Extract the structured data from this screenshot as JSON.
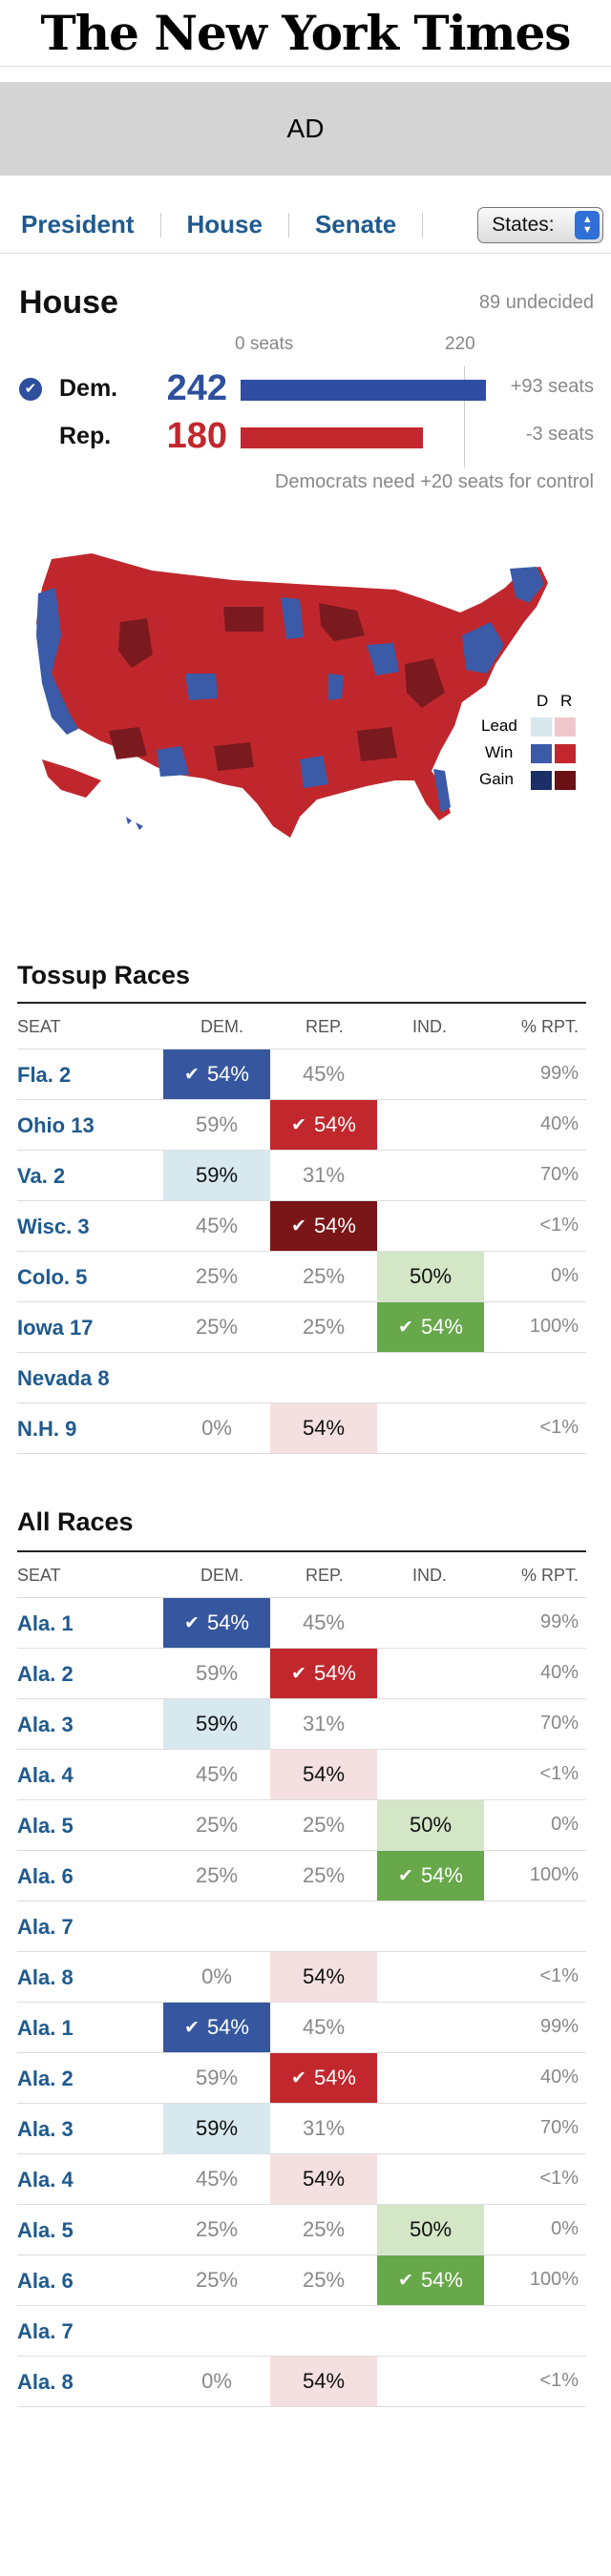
{
  "header": {
    "logo": "The New York Times"
  },
  "ad": {
    "label": "AD"
  },
  "nav": {
    "items": [
      "President",
      "House",
      "Senate"
    ],
    "states_select": "States:"
  },
  "summary": {
    "title": "House",
    "undecided": "89 undecided",
    "scale_start": "0 seats",
    "scale_mark": "220",
    "dem": {
      "label": "Dem.",
      "seats": "242",
      "change": "+93 seats",
      "winner": true
    },
    "rep": {
      "label": "Rep.",
      "seats": "180",
      "change": "-3 seats"
    },
    "control_note": "Democrats need +20 seats for control"
  },
  "map_legend": {
    "columns": [
      "D",
      "R"
    ],
    "rows": [
      "Lead",
      "Win",
      "Gain"
    ],
    "colors": {
      "dem_lead": "#d7e8ef",
      "rep_lead": "#f0c8cb",
      "dem_win": "#3a5ba8",
      "rep_win": "#c1272d",
      "dem_gain": "#1a2f68",
      "rep_gain": "#6b1014"
    }
  },
  "columns": {
    "seat": "SEAT",
    "dem": "DEM.",
    "rep": "REP.",
    "ind": "IND.",
    "pct": "% RPT."
  },
  "tossup": {
    "title": "Tossup Races",
    "rows": [
      {
        "seat": "Fla. 2",
        "dem": "54%",
        "rep": "45%",
        "ind": "",
        "pct": "99%",
        "style": {
          "dem": "fill-win-dem"
        },
        "check": "dem"
      },
      {
        "seat": "Ohio 13",
        "dem": "59%",
        "rep": "54%",
        "ind": "",
        "pct": "40%",
        "style": {
          "rep": "fill-win-rep"
        },
        "check": "rep"
      },
      {
        "seat": "Va. 2",
        "dem": "59%",
        "rep": "31%",
        "ind": "",
        "pct": "70%",
        "style": {
          "dem": "lead-dem"
        }
      },
      {
        "seat": "Wisc. 3",
        "dem": "45%",
        "rep": "54%",
        "ind": "",
        "pct": "<1%",
        "style": {
          "rep": "fill-gain-rep"
        },
        "check": "rep"
      },
      {
        "seat": "Colo. 5",
        "dem": "25%",
        "rep": "25%",
        "ind": "50%",
        "pct": "0%",
        "style": {
          "ind": "lead-ind"
        }
      },
      {
        "seat": "Iowa 17",
        "dem": "25%",
        "rep": "25%",
        "ind": "54%",
        "pct": "100%",
        "style": {
          "ind": "fill-win-ind"
        },
        "check": "ind"
      },
      {
        "seat": "Nevada 8",
        "dem": "",
        "rep": "",
        "ind": "",
        "pct": "",
        "style": {}
      },
      {
        "seat": "N.H. 9",
        "dem": "0%",
        "rep": "54%",
        "ind": "",
        "pct": "<1%",
        "style": {
          "rep": "lead-rep"
        }
      }
    ]
  },
  "all_races": {
    "title": "All Races",
    "rows": [
      {
        "seat": "Ala. 1",
        "dem": "54%",
        "rep": "45%",
        "ind": "",
        "pct": "99%",
        "style": {
          "dem": "fill-win-dem"
        },
        "check": "dem"
      },
      {
        "seat": "Ala. 2",
        "dem": "59%",
        "rep": "54%",
        "ind": "",
        "pct": "40%",
        "style": {
          "rep": "fill-win-rep"
        },
        "check": "rep"
      },
      {
        "seat": "Ala. 3",
        "dem": "59%",
        "rep": "31%",
        "ind": "",
        "pct": "70%",
        "style": {
          "dem": "lead-dem"
        }
      },
      {
        "seat": "Ala. 4",
        "dem": "45%",
        "rep": "54%",
        "ind": "",
        "pct": "<1%",
        "style": {
          "rep": "lead-rep"
        }
      },
      {
        "seat": "Ala. 5",
        "dem": "25%",
        "rep": "25%",
        "ind": "50%",
        "pct": "0%",
        "style": {
          "ind": "lead-ind"
        }
      },
      {
        "seat": "Ala. 6",
        "dem": "25%",
        "rep": "25%",
        "ind": "54%",
        "pct": "100%",
        "style": {
          "ind": "fill-win-ind"
        },
        "check": "ind"
      },
      {
        "seat": "Ala. 7",
        "dem": "",
        "rep": "",
        "ind": "",
        "pct": "",
        "style": {}
      },
      {
        "seat": "Ala. 8",
        "dem": "0%",
        "rep": "54%",
        "ind": "",
        "pct": "<1%",
        "style": {
          "rep": "lead-rep"
        }
      },
      {
        "seat": "Ala. 1",
        "dem": "54%",
        "rep": "45%",
        "ind": "",
        "pct": "99%",
        "style": {
          "dem": "fill-win-dem"
        },
        "check": "dem"
      },
      {
        "seat": "Ala. 2",
        "dem": "59%",
        "rep": "54%",
        "ind": "",
        "pct": "40%",
        "style": {
          "rep": "fill-win-rep"
        },
        "check": "rep"
      },
      {
        "seat": "Ala. 3",
        "dem": "59%",
        "rep": "31%",
        "ind": "",
        "pct": "70%",
        "style": {
          "dem": "lead-dem"
        }
      },
      {
        "seat": "Ala. 4",
        "dem": "45%",
        "rep": "54%",
        "ind": "",
        "pct": "<1%",
        "style": {
          "rep": "lead-rep"
        }
      },
      {
        "seat": "Ala. 5",
        "dem": "25%",
        "rep": "25%",
        "ind": "50%",
        "pct": "0%",
        "style": {
          "ind": "lead-ind"
        }
      },
      {
        "seat": "Ala. 6",
        "dem": "25%",
        "rep": "25%",
        "ind": "54%",
        "pct": "100%",
        "style": {
          "ind": "fill-win-ind"
        },
        "check": "ind"
      },
      {
        "seat": "Ala. 7",
        "dem": "",
        "rep": "",
        "ind": "",
        "pct": "",
        "style": {}
      },
      {
        "seat": "Ala. 8",
        "dem": "0%",
        "rep": "54%",
        "ind": "",
        "pct": "<1%",
        "style": {
          "rep": "lead-rep"
        }
      }
    ]
  }
}
